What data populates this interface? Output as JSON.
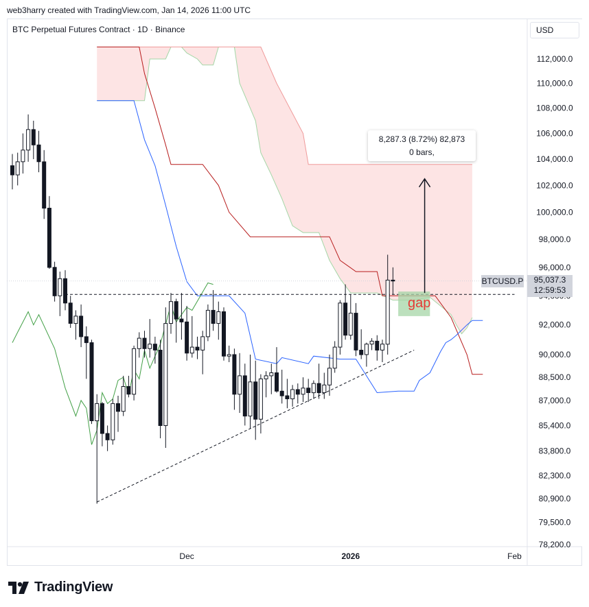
{
  "header": {
    "attribution": "web3harry created with TradingView.com, Jan 14, 2026 11:00 UTC"
  },
  "symbol_title": "BTC Perpetual Futures Contract · 1D · Binance",
  "currency": "USD",
  "tooltip": {
    "line1": "8,287.3 (8.72%) 82,873",
    "line2": "0 bars,"
  },
  "gap_label": "gap",
  "ticker": "BTCUSD.P",
  "last_price": {
    "price": "95,037.3",
    "countdown": "12:59:53"
  },
  "logo": {
    "text": "TradingView"
  },
  "colors": {
    "up": "#ffffff",
    "candle_border": "#131722",
    "kijun": "#b71c1c",
    "tenkan": "#2962ff",
    "chikou": "#43a047",
    "cloud_bear": "#fde4e4",
    "cloud_bull": "#dff0da",
    "gap_box": "#a5d6a7",
    "gap_text": "#e53935"
  },
  "chart_data": {
    "type": "candlestick",
    "title": "BTC Perpetual Futures Contract · 1D · Binance",
    "y_axis": {
      "scale": "log",
      "ticks": [
        "112,000.0",
        "110,000.0",
        "108,000.0",
        "106,000.0",
        "104,000.0",
        "102,000.0",
        "100,000.0",
        "98,000.0",
        "96,000.0",
        "94,000.0",
        "92,000.0",
        "90,000.0",
        "88,500.0",
        "87,000.0",
        "85,400.0",
        "83,800.0",
        "82,300.0",
        "80,900.0",
        "79,500.0",
        "78,200.0"
      ]
    },
    "x_axis": {
      "ticks": [
        "Dec",
        "2026",
        "Feb"
      ]
    },
    "x_ticks": [
      {
        "label": "Dec",
        "date": "2025-12-01",
        "bold": false
      },
      {
        "label": "2026",
        "date": "2026-01-01",
        "bold": true
      },
      {
        "label": "Feb",
        "date": "2026-02-01",
        "bold": false
      }
    ],
    "start_date": "2025-10-29",
    "candles": [
      [
        103500,
        104400,
        101700,
        102800
      ],
      [
        102800,
        104500,
        102000,
        103800
      ],
      [
        103800,
        106000,
        102900,
        104700
      ],
      [
        104700,
        107500,
        103800,
        106300
      ],
      [
        106300,
        107000,
        104000,
        105100
      ],
      [
        105100,
        106200,
        103000,
        103800
      ],
      [
        103800,
        104700,
        99500,
        100300
      ],
      [
        100300,
        101200,
        95900,
        96000
      ],
      [
        96000,
        96400,
        93600,
        94000
      ],
      [
        94000,
        95700,
        92600,
        95200
      ],
      [
        95200,
        95800,
        93000,
        93500
      ],
      [
        93500,
        94000,
        91800,
        92100
      ],
      [
        92100,
        93000,
        91000,
        92600
      ],
      [
        92600,
        93400,
        90500,
        91200
      ],
      [
        91200,
        91900,
        88400,
        90800
      ],
      [
        90800,
        91000,
        85500,
        85700
      ],
      [
        85700,
        87400,
        80600,
        86800
      ],
      [
        86800,
        86900,
        84100,
        84900
      ],
      [
        84900,
        85400,
        83800,
        84500
      ],
      [
        84500,
        87100,
        84200,
        86800
      ],
      [
        86800,
        87300,
        85000,
        86300
      ],
      [
        86300,
        88600,
        86000,
        87900
      ],
      [
        87900,
        88600,
        87200,
        87400
      ],
      [
        87400,
        90600,
        87000,
        90400
      ],
      [
        90400,
        91500,
        89800,
        91100
      ],
      [
        91100,
        91600,
        89800,
        90400
      ],
      [
        90400,
        92400,
        89800,
        90700
      ],
      [
        90700,
        91200,
        89400,
        90300
      ],
      [
        90300,
        91000,
        84600,
        85400
      ],
      [
        85400,
        93200,
        84000,
        92100
      ],
      [
        92100,
        94200,
        91400,
        93600
      ],
      [
        93600,
        93800,
        90800,
        92400
      ],
      [
        92400,
        94200,
        91000,
        92200
      ],
      [
        92200,
        93300,
        89600,
        90100
      ],
      [
        90100,
        92600,
        89800,
        90500
      ],
      [
        90500,
        91200,
        89700,
        90300
      ],
      [
        90300,
        91600,
        88700,
        91200
      ],
      [
        91200,
        93400,
        90900,
        93000
      ],
      [
        93000,
        94400,
        91600,
        92100
      ],
      [
        92100,
        93600,
        91000,
        92900
      ],
      [
        92900,
        93200,
        89600,
        89900
      ],
      [
        89900,
        90600,
        89500,
        90000
      ],
      [
        90000,
        90400,
        86400,
        87400
      ],
      [
        87400,
        90100,
        86200,
        88600
      ],
      [
        88600,
        89400,
        85400,
        86000
      ],
      [
        86000,
        90000,
        85200,
        88200
      ],
      [
        88200,
        89600,
        84500,
        85800
      ],
      [
        85800,
        88700,
        84900,
        88400
      ],
      [
        88400,
        88900,
        87200,
        88600
      ],
      [
        88600,
        89400,
        87400,
        88800
      ],
      [
        88800,
        90500,
        87500,
        87600
      ],
      [
        87600,
        89000,
        86800,
        87300
      ],
      [
        87300,
        88400,
        86500,
        87100
      ],
      [
        87100,
        88000,
        86600,
        87700
      ],
      [
        87700,
        88100,
        86800,
        87400
      ],
      [
        87400,
        88500,
        86900,
        87800
      ],
      [
        87800,
        88400,
        86900,
        87500
      ],
      [
        87500,
        88300,
        87100,
        88100
      ],
      [
        88100,
        89400,
        87100,
        87500
      ],
      [
        87500,
        88800,
        87100,
        88000
      ],
      [
        88000,
        90000,
        87300,
        89100
      ],
      [
        89100,
        90900,
        88800,
        90500
      ],
      [
        90500,
        93700,
        90000,
        93500
      ],
      [
        93500,
        94800,
        91000,
        91300
      ],
      [
        91300,
        94100,
        91000,
        92800
      ],
      [
        92800,
        93500,
        89900,
        90300
      ],
      [
        90300,
        91700,
        89700,
        90000
      ],
      [
        90000,
        90800,
        89200,
        90700
      ],
      [
        90700,
        91100,
        90300,
        90900
      ],
      [
        90900,
        91300,
        89600,
        90300
      ],
      [
        90300,
        91000,
        89500,
        90700
      ],
      [
        90700,
        96900,
        90000,
        95100
      ],
      [
        95100,
        96000,
        94100,
        95037
      ]
    ],
    "tenkan": [
      [
        0,
        108600
      ],
      [
        7,
        108600
      ],
      [
        9,
        105500
      ],
      [
        11,
        103500
      ],
      [
        13,
        100500
      ],
      [
        15,
        97500
      ],
      [
        17,
        95000
      ],
      [
        19,
        94000
      ],
      [
        25,
        94000
      ],
      [
        28,
        92800
      ],
      [
        30,
        89700
      ],
      [
        34,
        89400
      ],
      [
        35,
        89800
      ],
      [
        40,
        89400
      ],
      [
        41,
        89900
      ],
      [
        46,
        89700
      ],
      [
        49,
        89700
      ],
      [
        53,
        87500
      ],
      [
        57,
        87600
      ],
      [
        60,
        87600
      ],
      [
        61,
        88300
      ],
      [
        63,
        88800
      ],
      [
        65,
        90200
      ],
      [
        66,
        90800
      ],
      [
        67,
        91000
      ],
      [
        68,
        91300
      ],
      [
        70,
        92000
      ],
      [
        71,
        92300
      ],
      [
        73,
        92300
      ]
    ],
    "kijun": [
      [
        0,
        113000
      ],
      [
        8,
        113000
      ],
      [
        9,
        110800
      ],
      [
        11,
        108000
      ],
      [
        13,
        105100
      ],
      [
        14,
        103600
      ],
      [
        20,
        103600
      ],
      [
        23,
        102000
      ],
      [
        25,
        100000
      ],
      [
        29,
        98200
      ],
      [
        44,
        98200
      ],
      [
        46,
        96500
      ],
      [
        49,
        95700
      ],
      [
        53,
        95700
      ],
      [
        54,
        94000
      ],
      [
        64,
        94000
      ],
      [
        67,
        92500
      ],
      [
        70,
        90000
      ],
      [
        71,
        88700
      ],
      [
        73,
        88700
      ]
    ],
    "chikou": [
      [
        0,
        90800
      ],
      [
        1,
        91500
      ],
      [
        3,
        92900
      ],
      [
        4,
        92000
      ],
      [
        5,
        92700
      ],
      [
        8,
        90400
      ],
      [
        10,
        87800
      ],
      [
        12,
        86000
      ],
      [
        13,
        87000
      ],
      [
        14,
        86500
      ],
      [
        15,
        84200
      ],
      [
        16,
        85100
      ],
      [
        17,
        87500
      ],
      [
        18,
        86800
      ],
      [
        19,
        87100
      ],
      [
        20,
        88300
      ],
      [
        21,
        88500
      ],
      [
        22,
        87400
      ],
      [
        23,
        89000
      ],
      [
        24,
        88400
      ],
      [
        25,
        90300
      ],
      [
        26,
        89100
      ],
      [
        28,
        90700
      ],
      [
        30,
        93400
      ],
      [
        31,
        92200
      ],
      [
        33,
        93200
      ],
      [
        34,
        93000
      ],
      [
        37,
        94900
      ],
      [
        38,
        94800
      ]
    ],
    "span_a": [
      [
        0,
        108600
      ],
      [
        9,
        108600
      ],
      [
        10,
        112000
      ],
      [
        13,
        112000
      ],
      [
        14,
        113000
      ],
      [
        16,
        113000
      ],
      [
        17,
        112500
      ],
      [
        19,
        112000
      ],
      [
        20,
        111500
      ],
      [
        22,
        111500
      ],
      [
        23,
        113000
      ],
      [
        26,
        113000
      ],
      [
        27,
        110000
      ],
      [
        28,
        109000
      ],
      [
        29,
        108000
      ],
      [
        30,
        107000
      ],
      [
        31,
        104500
      ],
      [
        33,
        102800
      ],
      [
        35,
        101000
      ],
      [
        37,
        99000
      ],
      [
        39,
        98500
      ],
      [
        42,
        98500
      ],
      [
        44,
        96500
      ],
      [
        46,
        95200
      ],
      [
        48,
        94200
      ],
      [
        53,
        94200
      ],
      [
        56,
        93700
      ],
      [
        60,
        93700
      ],
      [
        63,
        93900
      ],
      [
        65,
        93300
      ],
      [
        67,
        92700
      ],
      [
        68,
        92000
      ],
      [
        69,
        91400
      ],
      [
        70,
        91800
      ],
      [
        71,
        92500
      ]
    ],
    "span_b": [
      [
        0,
        113000
      ],
      [
        31,
        113000
      ],
      [
        34,
        110000
      ],
      [
        39,
        106000
      ],
      [
        40,
        103600
      ],
      [
        57,
        103600
      ],
      [
        63,
        103600
      ],
      [
        71,
        103600
      ]
    ],
    "span_x_offset": 16,
    "support_line": {
      "from": [
        16,
        80700
      ],
      "to": [
        76,
        90300
      ]
    },
    "resistance_level": 94100,
    "gap_box": {
      "x0": 73,
      "x1": 79,
      "top": 94300,
      "bottom": 92600
    },
    "measure": {
      "x": 78,
      "from": 94200,
      "to": 102500
    }
  }
}
